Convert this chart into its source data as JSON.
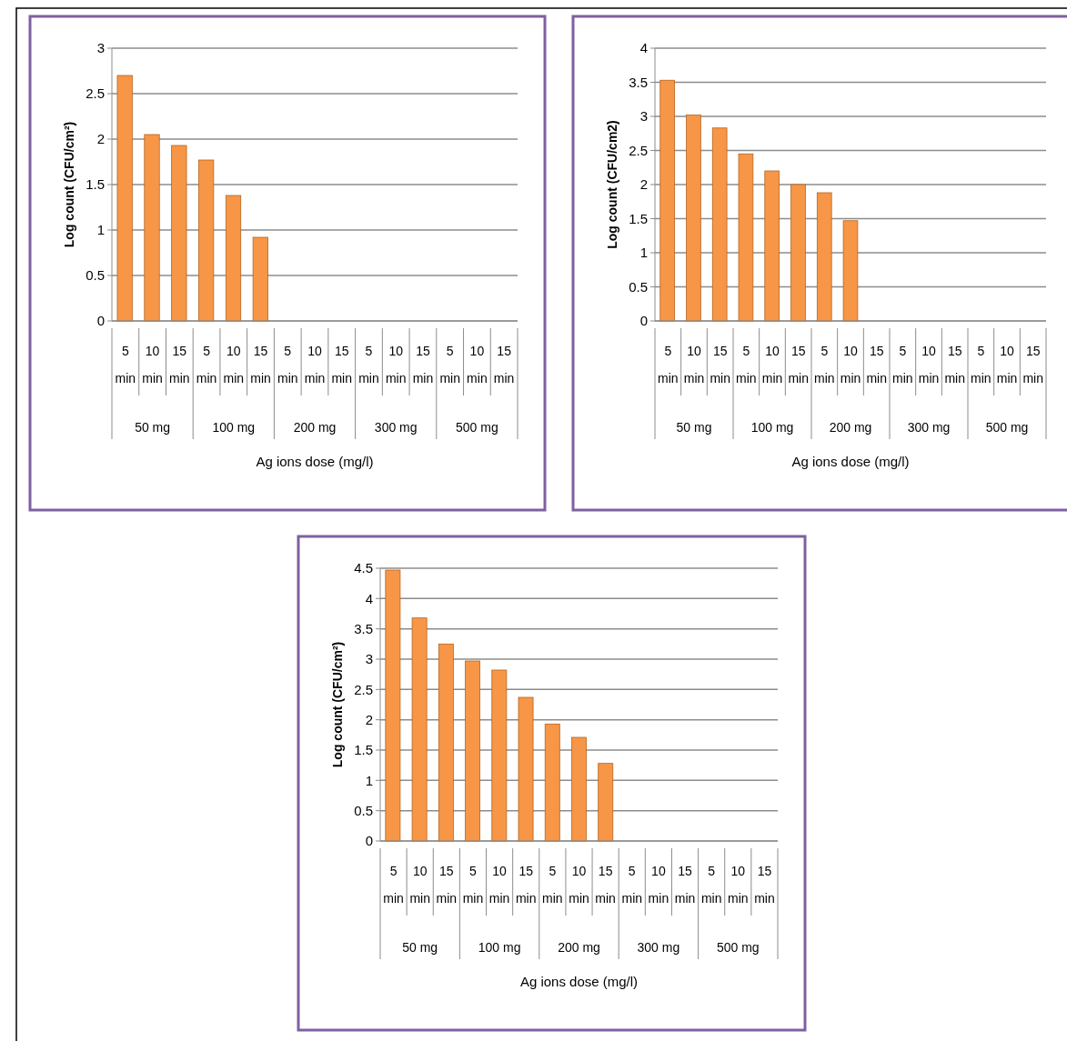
{
  "chart_data": [
    {
      "type": "bar",
      "ylabel": "Log count (CFU/cm²)",
      "xlabel": "Ag ions dose (mg/l)",
      "categories": [
        "5 min",
        "10 min",
        "15 min",
        "5 min",
        "10 min",
        "15 min",
        "5 min",
        "10 min",
        "15 min",
        "5 min",
        "10 min",
        "15 min",
        "5 min",
        "10 min",
        "15 min"
      ],
      "annotations": [
        "50 mg",
        "100 mg",
        "200 mg",
        "300 mg",
        "500 mg"
      ],
      "values": [
        2.7,
        2.05,
        1.93,
        1.77,
        1.38,
        0.92,
        0,
        0,
        0,
        0,
        0,
        0,
        0,
        0,
        0
      ],
      "colors": [
        "#f79646",
        "#f79646",
        "#f79646",
        "#f79646",
        "#f79646",
        "#f79646",
        "#8064a2",
        "#c0753a",
        "#c0753a",
        "#c0753a",
        "#c0753a",
        "#c0753a",
        "#c0753a",
        "#c0753a",
        "#c0753a"
      ],
      "ylim": [
        0,
        3
      ],
      "yticks": [
        0,
        0.5,
        1,
        1.5,
        2,
        2.5,
        3
      ],
      "grid": "y"
    },
    {
      "type": "bar",
      "ylabel": "Log count (CFU/cm2)",
      "xlabel": "Ag ions dose (mg/l)",
      "categories": [
        "5 min",
        "10 min",
        "15 min",
        "5 min",
        "10 min",
        "15 min",
        "5 min",
        "10 min",
        "15 min",
        "5 min",
        "10 min",
        "15 min",
        "5 min",
        "10 min",
        "15 min"
      ],
      "annotations": [
        "50 mg",
        "100 mg",
        "200 mg",
        "300 mg",
        "500 mg"
      ],
      "values": [
        3.53,
        3.02,
        2.83,
        2.45,
        2.2,
        2.0,
        1.88,
        1.47,
        0,
        0,
        0,
        0,
        0,
        0,
        0
      ],
      "colors": [
        "#f79646",
        "#f79646",
        "#f79646",
        "#f79646",
        "#f79646",
        "#f79646",
        "#f79646",
        "#f79646",
        "#000000",
        "#c0753a",
        "#c0753a",
        "#c0753a",
        "#c0753a",
        "#c0753a",
        "#c0753a"
      ],
      "ylim": [
        0,
        4
      ],
      "yticks": [
        0,
        0.5,
        1,
        1.5,
        2,
        2.5,
        3,
        3.5,
        4
      ],
      "grid": "y"
    },
    {
      "type": "bar",
      "ylabel": "Log count (CFU/cm²)",
      "xlabel": "Ag ions dose (mg/l)",
      "categories": [
        "5 min",
        "10 min",
        "15 min",
        "5 min",
        "10 min",
        "15 min",
        "5 min",
        "10 min",
        "15 min",
        "5 min",
        "10 min",
        "15 min",
        "5 min",
        "10 min",
        "15 min"
      ],
      "annotations": [
        "50 mg",
        "100 mg",
        "200 mg",
        "300 mg",
        "500 mg"
      ],
      "values": [
        4.47,
        3.68,
        3.25,
        2.97,
        2.82,
        2.37,
        1.93,
        1.71,
        1.28,
        0,
        0,
        0,
        0,
        0,
        0
      ],
      "colors": [
        "#f79646",
        "#f79646",
        "#f79646",
        "#f79646",
        "#f79646",
        "#f79646",
        "#f79646",
        "#f79646",
        "#f79646",
        "#000000",
        "#c0753a",
        "#c0753a",
        "#c0753a",
        "#c0753a",
        "#c0753a"
      ],
      "ylim": [
        0,
        4.5
      ],
      "yticks": [
        0,
        0.5,
        1,
        1.5,
        2,
        2.5,
        3,
        3.5,
        4,
        4.5
      ],
      "grid": "y"
    }
  ]
}
